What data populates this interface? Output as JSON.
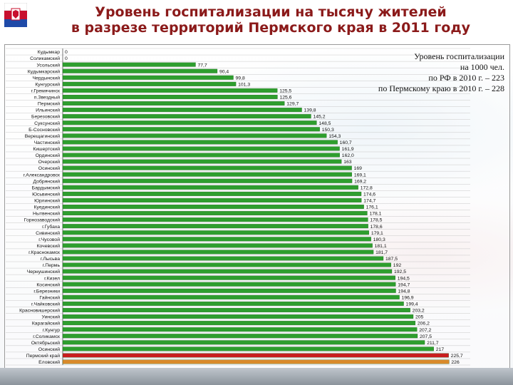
{
  "slide": {
    "title_line1": "Уровень госпитализации на тысячу жителей",
    "title_line2": "в разрезе территорий Пермского края в 2011 году",
    "note_lines": [
      "Уровень госпитализации",
      "на 1000 чел.",
      "по РФ в 2010 г. – 223",
      "по Пермскому краю в 2010 г. – 228"
    ]
  },
  "colors": {
    "bar_default": "#2e9e2e",
    "bar_highlight_red": "#c81e1e",
    "bar_highlight_orange": "#d98a2b",
    "title": "#8b1a1a"
  },
  "chart_data": {
    "type": "bar",
    "orientation": "horizontal",
    "title": "Уровень госпитализации на тысячу жителей в разрезе территорий Пермского края в 2011 году",
    "xlabel": "",
    "ylabel": "",
    "xlim": [
      0,
      230
    ],
    "grid": true,
    "categories": [
      "Кудымкар",
      "Соликамский",
      "Усольский",
      "Кудымкарский",
      "Чердынский",
      "Кунгурский",
      "г.Гремячинск",
      "п.Звездный",
      "Пермский",
      "Ильинский",
      "Березовский",
      "Суксунский",
      "Б-Сосновский",
      "Верещагинский",
      "Частинский",
      "Кишертский",
      "Ординский",
      "Очерский",
      "Осинский",
      "г.Александровск",
      "Добрянский",
      "Бардымский",
      "Юсьвинский",
      "Юрлинский",
      "Куединский",
      "Нытвенский",
      "Горнозаводский",
      "г.Губаха",
      "Сивинский",
      "г.Чусовой",
      "Кочевский",
      "г.Краснокамск",
      "г.Лысьва",
      "г.Пермь",
      "Чернушинский",
      "г.Кизел",
      "Косинский",
      "г.Березники",
      "Гайнский",
      "г.Чайковский",
      "Красновишерский",
      "Уинский",
      "Карагайский",
      "г.Кунгур",
      "г.Соликамск",
      "Октябрьский",
      "Осинский",
      "Пермский край",
      "Еловский"
    ],
    "values": [
      0,
      0,
      77.7,
      90.4,
      99.8,
      101.3,
      125.5,
      125.6,
      129.7,
      139.8,
      145.2,
      148.5,
      150.3,
      154.3,
      160.7,
      161.9,
      162.0,
      163,
      169,
      169.1,
      169.2,
      172.8,
      174.6,
      174.7,
      176.1,
      178.1,
      178.5,
      178.6,
      179.1,
      180.3,
      181.1,
      181.7,
      187.5,
      192,
      192.5,
      194.5,
      194.7,
      194.8,
      196.9,
      199.4,
      203.2,
      205,
      206.2,
      207.2,
      207.5,
      211.7,
      217,
      225.7,
      226
    ],
    "labels": [
      "0",
      "0",
      "77,7",
      "90,4",
      "99,8",
      "101,3",
      "125,5",
      "125,6",
      "129,7",
      "139,8",
      "145,2",
      "148,5",
      "150,3",
      "154,3",
      "160,7",
      "161,9",
      "162,0",
      "163",
      "169",
      "169,1",
      "169,2",
      "172,8",
      "174,6",
      "174,7",
      "176,1",
      "178,1",
      "178,5",
      "178,6",
      "179,1",
      "180,3",
      "181,1",
      "181,7",
      "187,5",
      "192",
      "192,5",
      "194,5",
      "194,7",
      "194,8",
      "196,9",
      "199,4",
      "203,2",
      "205",
      "206,2",
      "207,2",
      "207,5",
      "211,7",
      "217",
      "225,7",
      "226"
    ],
    "highlight": {
      "Пермский край": "red",
      "Еловский": "orange"
    }
  }
}
